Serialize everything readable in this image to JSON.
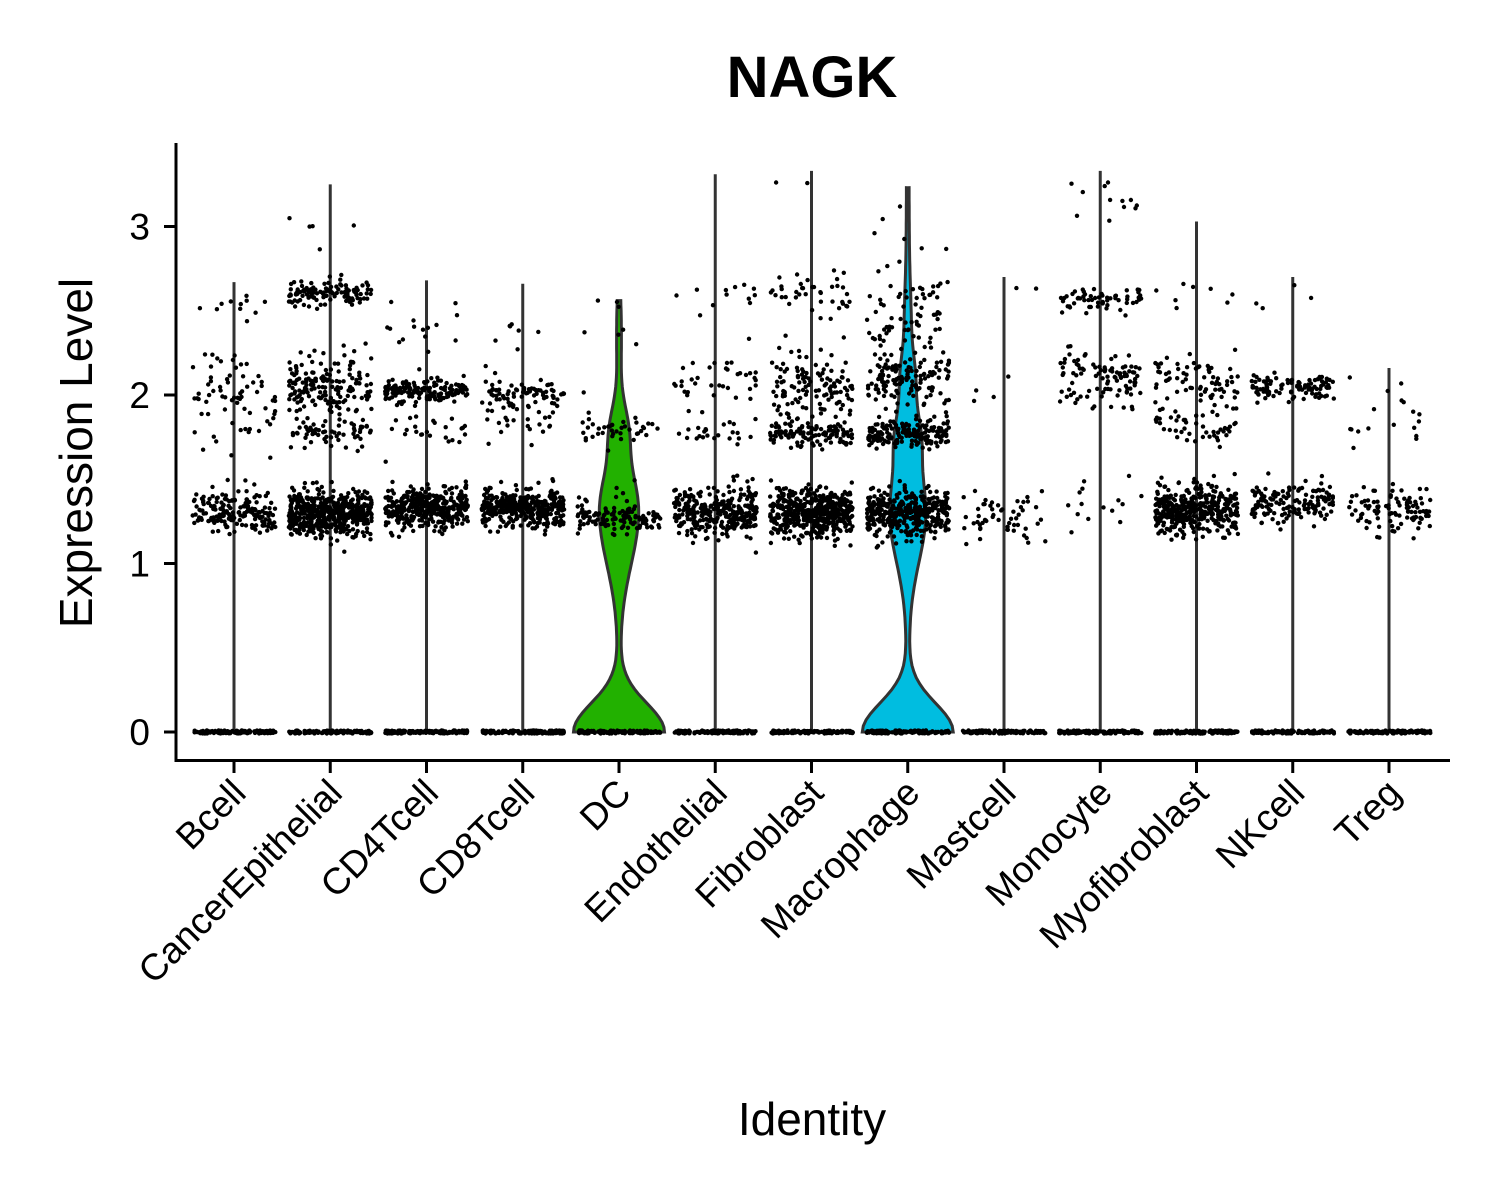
{
  "chart_data": {
    "type": "violin",
    "title": "NAGK",
    "xlabel": "Identity",
    "ylabel": "Expression Level",
    "ylim": [
      -0.17,
      3.5
    ],
    "yticks": [
      0,
      1,
      2,
      3
    ],
    "grid": false,
    "legend": "none",
    "categories": [
      "Bcell",
      "CancerEpithelial",
      "CD4Tcell",
      "CD8Tcell",
      "DC",
      "Endothelial",
      "Fibroblast",
      "Macrophage",
      "Mastcell",
      "Monocyte",
      "Myofibroblast",
      "NKcell",
      "Treg"
    ],
    "series": [
      {
        "category": "Bcell",
        "fill": "",
        "max": 2.67,
        "clusters": [
          {
            "y": 1.3,
            "sd": 0.06,
            "n": 180,
            "spread": 0.13
          },
          {
            "y": 2.0,
            "sd": 0.15,
            "n": 70,
            "spread": 0.13
          },
          {
            "y": 2.55,
            "sd": 0.06,
            "n": 10,
            "spread": 0.13
          }
        ]
      },
      {
        "category": "CancerEpithelial",
        "fill": "",
        "max": 3.25,
        "clusters": [
          {
            "y": 1.3,
            "sd": 0.07,
            "n": 500,
            "spread": 0.16
          },
          {
            "y": 2.05,
            "sd": 0.09,
            "n": 170,
            "spread": 0.16
          },
          {
            "y": 1.78,
            "sd": 0.04,
            "n": 60,
            "spread": 0.16
          },
          {
            "y": 2.6,
            "sd": 0.04,
            "n": 120,
            "spread": 0.16
          },
          {
            "y": 3.05,
            "sd": 0.12,
            "n": 5,
            "spread": 0.16
          }
        ]
      },
      {
        "category": "CD4Tcell",
        "fill": "",
        "max": 2.68,
        "clusters": [
          {
            "y": 1.33,
            "sd": 0.06,
            "n": 400,
            "spread": 0.16
          },
          {
            "y": 2.02,
            "sd": 0.04,
            "n": 160,
            "spread": 0.16
          },
          {
            "y": 1.8,
            "sd": 0.05,
            "n": 25,
            "spread": 0.16
          },
          {
            "y": 2.4,
            "sd": 0.1,
            "n": 15,
            "spread": 0.16
          }
        ]
      },
      {
        "category": "CD8Tcell",
        "fill": "",
        "max": 2.66,
        "clusters": [
          {
            "y": 1.33,
            "sd": 0.06,
            "n": 380,
            "spread": 0.16
          },
          {
            "y": 2.0,
            "sd": 0.05,
            "n": 80,
            "spread": 0.16
          },
          {
            "y": 1.82,
            "sd": 0.05,
            "n": 20,
            "spread": 0.16
          },
          {
            "y": 2.4,
            "sd": 0.1,
            "n": 8,
            "spread": 0.16
          }
        ]
      },
      {
        "category": "DC",
        "fill": "#22b100",
        "max": 2.56,
        "clusters": [
          {
            "y": 1.26,
            "sd": 0.04,
            "n": 110,
            "spread": 0.16
          },
          {
            "y": 1.8,
            "sd": 0.04,
            "n": 40,
            "spread": 0.16
          },
          {
            "y": 1.4,
            "sd": 0.06,
            "n": 15,
            "spread": 0.16
          },
          {
            "y": 2.35,
            "sd": 0.15,
            "n": 8,
            "spread": 0.16
          }
        ]
      },
      {
        "category": "Endothelial",
        "fill": "",
        "max": 3.31,
        "clusters": [
          {
            "y": 1.3,
            "sd": 0.07,
            "n": 320,
            "spread": 0.16
          },
          {
            "y": 2.05,
            "sd": 0.12,
            "n": 40,
            "spread": 0.16
          },
          {
            "y": 1.77,
            "sd": 0.03,
            "n": 20,
            "spread": 0.16
          },
          {
            "y": 2.6,
            "sd": 0.06,
            "n": 12,
            "spread": 0.16
          }
        ]
      },
      {
        "category": "Fibroblast",
        "fill": "",
        "max": 3.33,
        "clusters": [
          {
            "y": 1.3,
            "sd": 0.07,
            "n": 480,
            "spread": 0.16
          },
          {
            "y": 2.05,
            "sd": 0.1,
            "n": 120,
            "spread": 0.16
          },
          {
            "y": 1.77,
            "sd": 0.04,
            "n": 120,
            "spread": 0.16
          },
          {
            "y": 2.6,
            "sd": 0.07,
            "n": 40,
            "spread": 0.16
          },
          {
            "y": 3.28,
            "sd": 0.03,
            "n": 2,
            "spread": 0.16
          }
        ]
      },
      {
        "category": "Macrophage",
        "fill": "#00bde0",
        "max": 3.23,
        "clusters": [
          {
            "y": 1.3,
            "sd": 0.07,
            "n": 400,
            "spread": 0.16
          },
          {
            "y": 1.77,
            "sd": 0.04,
            "n": 180,
            "spread": 0.16
          },
          {
            "y": 2.1,
            "sd": 0.08,
            "n": 140,
            "spread": 0.16
          },
          {
            "y": 2.4,
            "sd": 0.05,
            "n": 40,
            "spread": 0.16
          },
          {
            "y": 2.62,
            "sd": 0.05,
            "n": 25,
            "spread": 0.16
          },
          {
            "y": 2.95,
            "sd": 0.15,
            "n": 8,
            "spread": 0.16
          }
        ]
      },
      {
        "category": "Mastcell",
        "fill": "",
        "max": 2.7,
        "clusters": [
          {
            "y": 1.28,
            "sd": 0.08,
            "n": 55,
            "spread": 0.16
          },
          {
            "y": 2.1,
            "sd": 0.05,
            "n": 4,
            "spread": 0.16
          },
          {
            "y": 2.58,
            "sd": 0.05,
            "n": 2,
            "spread": 0.16
          }
        ]
      },
      {
        "category": "Monocyte",
        "fill": "",
        "max": 3.33,
        "clusters": [
          {
            "y": 2.1,
            "sd": 0.08,
            "n": 100,
            "spread": 0.16
          },
          {
            "y": 2.57,
            "sd": 0.04,
            "n": 60,
            "spread": 0.16
          },
          {
            "y": 1.35,
            "sd": 0.08,
            "n": 15,
            "spread": 0.16
          },
          {
            "y": 3.15,
            "sd": 0.08,
            "n": 12,
            "spread": 0.16
          }
        ]
      },
      {
        "category": "Myofibroblast",
        "fill": "",
        "max": 3.03,
        "clusters": [
          {
            "y": 1.32,
            "sd": 0.07,
            "n": 400,
            "spread": 0.16
          },
          {
            "y": 2.05,
            "sd": 0.1,
            "n": 80,
            "spread": 0.16
          },
          {
            "y": 1.8,
            "sd": 0.06,
            "n": 40,
            "spread": 0.16
          },
          {
            "y": 2.6,
            "sd": 0.05,
            "n": 8,
            "spread": 0.16
          }
        ]
      },
      {
        "category": "NKcell",
        "fill": "",
        "max": 2.7,
        "clusters": [
          {
            "y": 1.36,
            "sd": 0.06,
            "n": 150,
            "spread": 0.16
          },
          {
            "y": 2.05,
            "sd": 0.04,
            "n": 100,
            "spread": 0.16
          },
          {
            "y": 2.6,
            "sd": 0.05,
            "n": 4,
            "spread": 0.16
          }
        ]
      },
      {
        "category": "Treg",
        "fill": "",
        "max": 2.16,
        "clusters": [
          {
            "y": 1.32,
            "sd": 0.07,
            "n": 100,
            "spread": 0.16
          },
          {
            "y": 1.9,
            "sd": 0.12,
            "n": 18,
            "spread": 0.16
          }
        ]
      }
    ]
  }
}
